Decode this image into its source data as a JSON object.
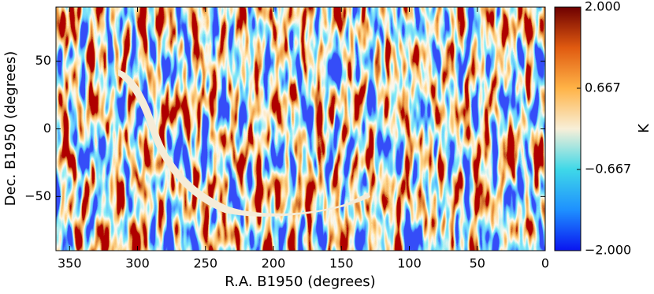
{
  "chart_data": {
    "type": "heatmap",
    "xlabel": "R.A. B1950 (degrees)",
    "ylabel": "Dec. B1950 (degrees)",
    "xlim": [
      360,
      0
    ],
    "xticks": [
      350,
      300,
      250,
      200,
      150,
      100,
      50,
      0
    ],
    "ylim": [
      -90,
      90
    ],
    "yticks": [
      {
        "value": -50,
        "label": "−50"
      },
      0,
      50
    ],
    "colorbar": {
      "label": "K",
      "lim": [
        -2,
        2
      ],
      "ticks": [
        {
          "value": -2,
          "label": "−2.000"
        },
        {
          "value": -0.667,
          "label": "−0.667"
        },
        0.667,
        {
          "value": 2,
          "label": "2.000"
        }
      ],
      "colors": [
        "#0a14f0",
        "#1e90ff",
        "#3fd8e8",
        "#f8efd8",
        "#ffb347",
        "#e05a10",
        "#6e0000"
      ]
    }
  }
}
